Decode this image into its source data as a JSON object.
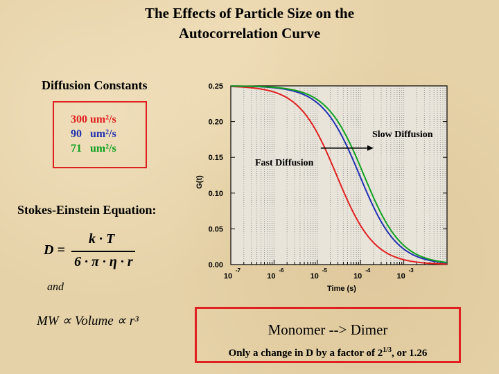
{
  "title_line1": "The Effects of Particle Size on the",
  "title_line2": "Autocorrelation Curve",
  "diffusion": {
    "heading": "Diffusion Constants",
    "constants": [
      {
        "text": "300 um²/s",
        "color": "#e02020"
      },
      {
        "text": "90   um²/s",
        "color": "#2030b0"
      },
      {
        "text": "71   um²/s",
        "color": "#10a020"
      }
    ]
  },
  "stokes": {
    "heading": "Stokes-Einstein Equation:",
    "lhs": "D =",
    "numerator": "k · T",
    "denominator": "6 · π · η · r",
    "and": "and",
    "mw": "MW ∝ Volume ∝ r³"
  },
  "chart_data": {
    "type": "line",
    "xlabel": "Time (s)",
    "ylabel": "G(t)",
    "xscale": "log",
    "xlim": [
      1e-07,
      0.01
    ],
    "ylim": [
      0,
      0.25
    ],
    "x_tick_labels": [
      {
        "base": "10",
        "exp": "-7",
        "value": 1e-07
      },
      {
        "base": "10",
        "exp": "-6",
        "value": 1e-06
      },
      {
        "base": "10",
        "exp": "-5",
        "value": 1e-05
      },
      {
        "base": "10",
        "exp": "-4",
        "value": 0.0001
      },
      {
        "base": "10",
        "exp": "-3",
        "value": 0.001
      }
    ],
    "y_tick_labels": [
      "0.00",
      "0.05",
      "0.10",
      "0.15",
      "0.20",
      "0.25"
    ],
    "y_ticks": [
      0,
      0.05,
      0.1,
      0.15,
      0.2,
      0.25
    ],
    "grid": "vertical dotted lines",
    "series": [
      {
        "color": "#e02020",
        "tau_d": 2.8e-05
      },
      {
        "color": "#2030b0",
        "tau_d": 9.5e-05
      },
      {
        "color": "#10a020",
        "tau_d": 0.00012
      }
    ],
    "g0": 0.25,
    "annotations": [
      {
        "text": "Slow Diffusion"
      },
      {
        "text": "Fast Diffusion"
      }
    ],
    "arrow": {
      "from_x": 1.2e-05,
      "to_x": 0.0002,
      "y": 0.163
    }
  },
  "monomer": {
    "title": "Monomer --> Dimer",
    "subtitle_prefix": "Only a change in D by a factor of 2",
    "subtitle_exp": "1/3",
    "subtitle_suffix": ", or 1.26"
  }
}
